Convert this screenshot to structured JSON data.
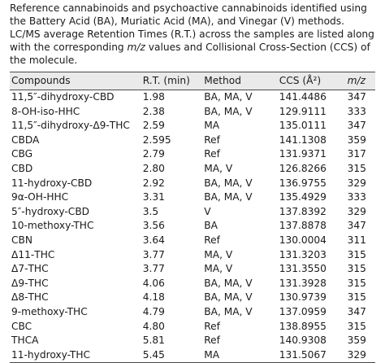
{
  "caption": {
    "text_before": "Reference cannabinoids and psychoactive cannabinoids identified using the Battery Acid (BA), Muriatic Acid (MA), and Vinegar (V) methods. LC/MS average Retention Times (R.T.) across the samples are listed along with the corresponding ",
    "mz": "m/z",
    "text_after": " values and Collisional Cross-Section (CCS) of the molecule."
  },
  "table": {
    "headers": {
      "compounds": "Compounds",
      "rt": "R.T. (min)",
      "method": "Method",
      "ccs": "CCS (Å²)",
      "mz": "m/z"
    },
    "rows": [
      {
        "compound": "11,5″-dihydroxy-CBD",
        "rt": "1.98",
        "method": "BA, MA, V",
        "ccs": "141.4486",
        "mz": "347"
      },
      {
        "compound": "8-OH-iso-HHC",
        "rt": "2.38",
        "method": "BA, MA, V",
        "ccs": "129.9111",
        "mz": "333"
      },
      {
        "compound": "11,5″-dihydroxy-Δ9-THC",
        "rt": "2.59",
        "method": "MA",
        "ccs": "135.0111",
        "mz": "347"
      },
      {
        "compound": "CBDA",
        "rt": "2.595",
        "method": "Ref",
        "ccs": "141.1308",
        "mz": "359"
      },
      {
        "compound": "CBG",
        "rt": "2.79",
        "method": "Ref",
        "ccs": "131.9371",
        "mz": "317"
      },
      {
        "compound": "CBD",
        "rt": "2.80",
        "method": "MA, V",
        "ccs": "126.8266",
        "mz": "315"
      },
      {
        "compound": "11-hydroxy-CBD",
        "rt": "2.92",
        "method": "BA, MA, V",
        "ccs": "136.9755",
        "mz": "329"
      },
      {
        "compound": "9α-OH-HHC",
        "rt": "3.31",
        "method": "BA, MA, V",
        "ccs": "135.4929",
        "mz": "333"
      },
      {
        "compound": "5″-hydroxy-CBD",
        "rt": "3.5",
        "method": "V",
        "ccs": "137.8392",
        "mz": "329"
      },
      {
        "compound": "10-methoxy-THC",
        "rt": "3.56",
        "method": "BA",
        "ccs": "137.8878",
        "mz": "347"
      },
      {
        "compound": "CBN",
        "rt": "3.64",
        "method": "Ref",
        "ccs": "130.0004",
        "mz": "311"
      },
      {
        "compound": "Δ11-THC",
        "rt": "3.77",
        "method": "MA, V",
        "ccs": "131.3203",
        "mz": "315"
      },
      {
        "compound": "Δ7-THC",
        "rt": "3.77",
        "method": "MA, V",
        "ccs": "131.3550",
        "mz": "315"
      },
      {
        "compound": "Δ9-THC",
        "rt": "4.06",
        "method": "BA, MA, V",
        "ccs": "131.3928",
        "mz": "315"
      },
      {
        "compound": "Δ8-THC",
        "rt": "4.18",
        "method": "BA, MA, V",
        "ccs": "130.9739",
        "mz": "315"
      },
      {
        "compound": "9-methoxy-THC",
        "rt": "4.79",
        "method": "BA, MA, V",
        "ccs": "137.0959",
        "mz": "347"
      },
      {
        "compound": "CBC",
        "rt": "4.80",
        "method": "Ref",
        "ccs": "138.8955",
        "mz": "315"
      },
      {
        "compound": "THCA",
        "rt": "5.81",
        "method": "Ref",
        "ccs": "140.9308",
        "mz": "359"
      },
      {
        "compound": "11-hydroxy-THC",
        "rt": "5.45",
        "method": "MA",
        "ccs": "131.5067",
        "mz": "329"
      }
    ]
  }
}
